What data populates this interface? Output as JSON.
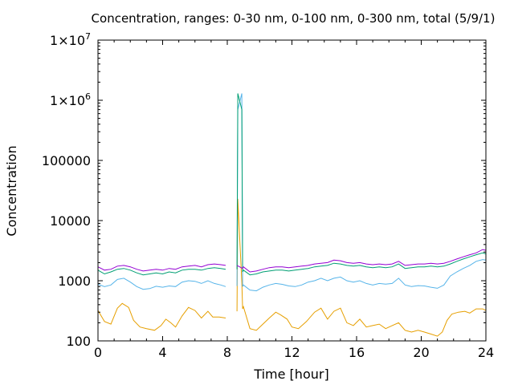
{
  "chart_data": {
    "type": "line",
    "title": "Concentration, ranges: 0-30 nm, 0-100 nm, 0-300 nm, total (5/9/1)",
    "xlabel": "Time [hour]",
    "ylabel": "Concentration",
    "xlim": [
      0,
      24
    ],
    "ylim": [
      100,
      10000000
    ],
    "yscale": "log",
    "grid": false,
    "x_ticks": [
      0,
      4,
      8,
      12,
      16,
      20,
      24
    ],
    "x_tick_labels": [
      "0",
      "4",
      "8",
      "12",
      "16",
      "20",
      "24"
    ],
    "y_ticks": [
      100,
      1000,
      10000,
      100000,
      1000000,
      10000000
    ],
    "y_tick_labels": [
      "100",
      "1000",
      "10000",
      "100000",
      "1×10^6",
      "1×10^7"
    ],
    "series": [
      {
        "color": "#e69f00",
        "points": [
          [
            0,
            320
          ],
          [
            0.4,
            210
          ],
          [
            0.8,
            190
          ],
          [
            1.2,
            350
          ],
          [
            1.5,
            420
          ],
          [
            1.9,
            360
          ],
          [
            2.2,
            220
          ],
          [
            2.6,
            170
          ],
          [
            3.0,
            160
          ],
          [
            3.5,
            150
          ],
          [
            3.9,
            180
          ],
          [
            4.2,
            230
          ],
          [
            4.5,
            200
          ],
          [
            4.8,
            170
          ],
          [
            5.2,
            260
          ],
          [
            5.6,
            360
          ],
          [
            6.0,
            320
          ],
          [
            6.4,
            240
          ],
          [
            6.8,
            310
          ],
          [
            7.1,
            250
          ],
          [
            7.5,
            250
          ],
          [
            7.9,
            240
          ],
          [
            8.6,
            310
          ],
          [
            8.65,
            23000
          ],
          [
            8.9,
            950
          ],
          [
            8.95,
            340
          ],
          [
            9.0,
            370
          ],
          [
            9.4,
            160
          ],
          [
            9.8,
            150
          ],
          [
            10.2,
            190
          ],
          [
            10.6,
            240
          ],
          [
            11.0,
            300
          ],
          [
            11.3,
            270
          ],
          [
            11.7,
            230
          ],
          [
            12.0,
            170
          ],
          [
            12.4,
            160
          ],
          [
            12.9,
            210
          ],
          [
            13.4,
            300
          ],
          [
            13.8,
            350
          ],
          [
            14.2,
            230
          ],
          [
            14.6,
            310
          ],
          [
            15.0,
            350
          ],
          [
            15.4,
            200
          ],
          [
            15.8,
            180
          ],
          [
            16.2,
            230
          ],
          [
            16.6,
            170
          ],
          [
            17.0,
            180
          ],
          [
            17.4,
            190
          ],
          [
            17.8,
            160
          ],
          [
            18.2,
            180
          ],
          [
            18.6,
            200
          ],
          [
            19.0,
            150
          ],
          [
            19.4,
            140
          ],
          [
            19.8,
            150
          ],
          [
            20.2,
            140
          ],
          [
            20.6,
            130
          ],
          [
            21.0,
            120
          ],
          [
            21.3,
            140
          ],
          [
            21.6,
            220
          ],
          [
            21.9,
            280
          ],
          [
            22.3,
            300
          ],
          [
            22.7,
            310
          ],
          [
            23.0,
            290
          ],
          [
            23.4,
            340
          ],
          [
            23.8,
            340
          ],
          [
            24.0,
            320
          ]
        ]
      },
      {
        "color": "#56b4e9",
        "points": [
          [
            0,
            870
          ],
          [
            0.4,
            800
          ],
          [
            0.8,
            850
          ],
          [
            1.2,
            1050
          ],
          [
            1.6,
            1100
          ],
          [
            2.0,
            950
          ],
          [
            2.4,
            800
          ],
          [
            2.8,
            720
          ],
          [
            3.2,
            740
          ],
          [
            3.6,
            810
          ],
          [
            4.0,
            780
          ],
          [
            4.4,
            820
          ],
          [
            4.8,
            800
          ],
          [
            5.2,
            950
          ],
          [
            5.6,
            1000
          ],
          [
            6.0,
            980
          ],
          [
            6.4,
            900
          ],
          [
            6.8,
            1000
          ],
          [
            7.2,
            900
          ],
          [
            7.6,
            850
          ],
          [
            7.9,
            800
          ],
          [
            8.6,
            820
          ],
          [
            8.65,
            700000
          ],
          [
            8.9,
            1300000
          ],
          [
            8.95,
            800
          ],
          [
            9.0,
            850
          ],
          [
            9.4,
            700
          ],
          [
            9.8,
            680
          ],
          [
            10.2,
            780
          ],
          [
            10.6,
            850
          ],
          [
            11.0,
            900
          ],
          [
            11.4,
            870
          ],
          [
            11.8,
            820
          ],
          [
            12.2,
            800
          ],
          [
            12.6,
            850
          ],
          [
            13.0,
            950
          ],
          [
            13.4,
            1000
          ],
          [
            13.8,
            1100
          ],
          [
            14.2,
            1000
          ],
          [
            14.6,
            1100
          ],
          [
            15.0,
            1150
          ],
          [
            15.4,
            1000
          ],
          [
            15.8,
            950
          ],
          [
            16.2,
            1000
          ],
          [
            16.6,
            900
          ],
          [
            17.0,
            850
          ],
          [
            17.4,
            900
          ],
          [
            17.8,
            880
          ],
          [
            18.2,
            900
          ],
          [
            18.6,
            1100
          ],
          [
            19.0,
            850
          ],
          [
            19.4,
            800
          ],
          [
            19.8,
            830
          ],
          [
            20.2,
            820
          ],
          [
            20.6,
            780
          ],
          [
            21.0,
            750
          ],
          [
            21.4,
            850
          ],
          [
            21.8,
            1200
          ],
          [
            22.2,
            1400
          ],
          [
            22.6,
            1600
          ],
          [
            23.0,
            1800
          ],
          [
            23.4,
            2100
          ],
          [
            23.8,
            2250
          ],
          [
            24.0,
            2200
          ]
        ]
      },
      {
        "color": "#009e73",
        "points": [
          [
            0,
            1500
          ],
          [
            0.4,
            1300
          ],
          [
            0.8,
            1400
          ],
          [
            1.2,
            1550
          ],
          [
            1.6,
            1600
          ],
          [
            2.0,
            1500
          ],
          [
            2.4,
            1350
          ],
          [
            2.8,
            1250
          ],
          [
            3.2,
            1300
          ],
          [
            3.6,
            1350
          ],
          [
            4.0,
            1300
          ],
          [
            4.4,
            1400
          ],
          [
            4.8,
            1350
          ],
          [
            5.2,
            1500
          ],
          [
            5.6,
            1550
          ],
          [
            6.0,
            1550
          ],
          [
            6.4,
            1500
          ],
          [
            6.8,
            1600
          ],
          [
            7.2,
            1650
          ],
          [
            7.6,
            1600
          ],
          [
            7.9,
            1550
          ],
          [
            8.6,
            1550
          ],
          [
            8.65,
            1300000
          ],
          [
            8.9,
            700000
          ],
          [
            8.95,
            1400
          ],
          [
            9.0,
            1500
          ],
          [
            9.4,
            1250
          ],
          [
            9.8,
            1300
          ],
          [
            10.2,
            1400
          ],
          [
            10.6,
            1450
          ],
          [
            11.0,
            1500
          ],
          [
            11.4,
            1500
          ],
          [
            11.8,
            1450
          ],
          [
            12.2,
            1500
          ],
          [
            12.6,
            1550
          ],
          [
            13.0,
            1600
          ],
          [
            13.4,
            1700
          ],
          [
            13.8,
            1750
          ],
          [
            14.2,
            1800
          ],
          [
            14.6,
            1950
          ],
          [
            15.0,
            1900
          ],
          [
            15.4,
            1800
          ],
          [
            15.8,
            1750
          ],
          [
            16.2,
            1800
          ],
          [
            16.6,
            1700
          ],
          [
            17.0,
            1650
          ],
          [
            17.4,
            1700
          ],
          [
            17.8,
            1650
          ],
          [
            18.2,
            1700
          ],
          [
            18.6,
            1900
          ],
          [
            19.0,
            1600
          ],
          [
            19.4,
            1650
          ],
          [
            19.8,
            1700
          ],
          [
            20.2,
            1700
          ],
          [
            20.6,
            1750
          ],
          [
            21.0,
            1700
          ],
          [
            21.4,
            1750
          ],
          [
            21.8,
            1900
          ],
          [
            22.2,
            2100
          ],
          [
            22.6,
            2300
          ],
          [
            23.0,
            2500
          ],
          [
            23.4,
            2700
          ],
          [
            23.8,
            2900
          ],
          [
            24.0,
            2800
          ]
        ]
      },
      {
        "color": "#9400d3",
        "points": [
          [
            0,
            1700
          ],
          [
            0.4,
            1500
          ],
          [
            0.8,
            1550
          ],
          [
            1.2,
            1750
          ],
          [
            1.6,
            1800
          ],
          [
            2.0,
            1700
          ],
          [
            2.4,
            1550
          ],
          [
            2.8,
            1450
          ],
          [
            3.2,
            1500
          ],
          [
            3.6,
            1550
          ],
          [
            4.0,
            1500
          ],
          [
            4.4,
            1600
          ],
          [
            4.8,
            1550
          ],
          [
            5.2,
            1700
          ],
          [
            5.6,
            1750
          ],
          [
            6.0,
            1800
          ],
          [
            6.4,
            1700
          ],
          [
            6.8,
            1850
          ],
          [
            7.2,
            1900
          ],
          [
            7.6,
            1850
          ],
          [
            7.9,
            1800
          ],
          [
            8.6,
            1800
          ],
          [
            8.95,
            1600
          ],
          [
            9.0,
            1700
          ],
          [
            9.4,
            1400
          ],
          [
            9.8,
            1450
          ],
          [
            10.2,
            1550
          ],
          [
            10.6,
            1650
          ],
          [
            11.0,
            1700
          ],
          [
            11.4,
            1700
          ],
          [
            11.8,
            1650
          ],
          [
            12.2,
            1700
          ],
          [
            12.6,
            1750
          ],
          [
            13.0,
            1800
          ],
          [
            13.4,
            1900
          ],
          [
            13.8,
            1950
          ],
          [
            14.2,
            2000
          ],
          [
            14.6,
            2200
          ],
          [
            15.0,
            2150
          ],
          [
            15.4,
            2000
          ],
          [
            15.8,
            1950
          ],
          [
            16.2,
            2000
          ],
          [
            16.6,
            1900
          ],
          [
            17.0,
            1850
          ],
          [
            17.4,
            1900
          ],
          [
            17.8,
            1850
          ],
          [
            18.2,
            1900
          ],
          [
            18.6,
            2100
          ],
          [
            19.0,
            1800
          ],
          [
            19.4,
            1850
          ],
          [
            19.8,
            1900
          ],
          [
            20.2,
            1900
          ],
          [
            20.6,
            1950
          ],
          [
            21.0,
            1900
          ],
          [
            21.4,
            1950
          ],
          [
            21.8,
            2100
          ],
          [
            22.2,
            2300
          ],
          [
            22.6,
            2500
          ],
          [
            23.0,
            2700
          ],
          [
            23.4,
            2900
          ],
          [
            23.8,
            3300
          ],
          [
            24.0,
            3200
          ]
        ]
      }
    ]
  }
}
